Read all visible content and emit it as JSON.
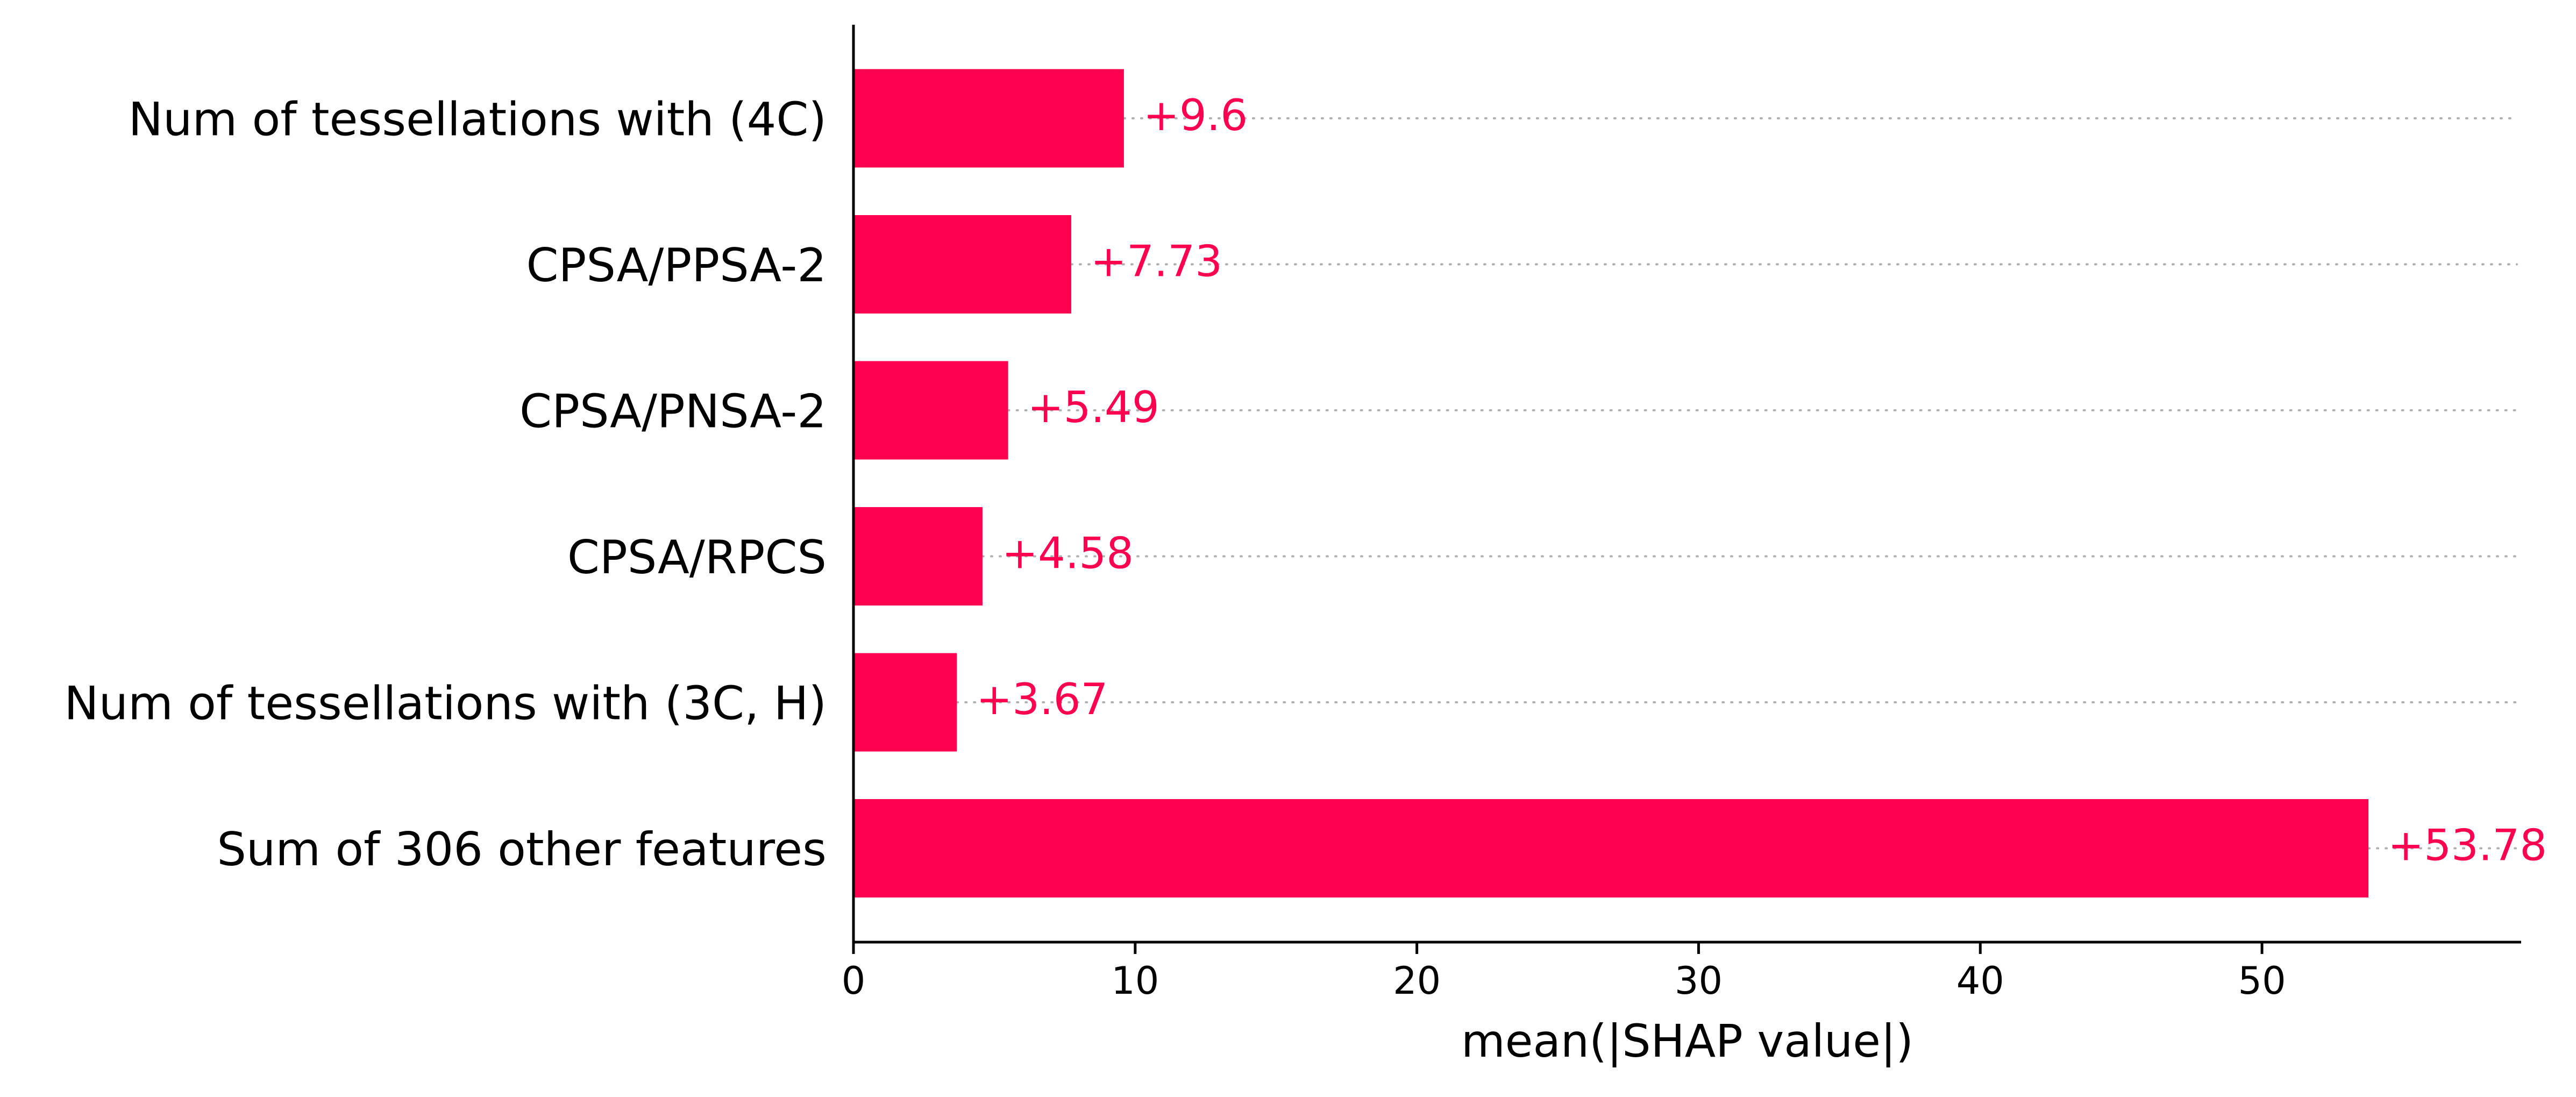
{
  "chart_data": {
    "type": "bar",
    "orientation": "horizontal",
    "categories": [
      "Num of tessellations with (4C)",
      "CPSA/PPSA-2",
      "CPSA/PNSA-2",
      "CPSA/RPCS",
      "Num of tessellations with (3C, H)",
      "Sum of 306 other features"
    ],
    "values": [
      9.6,
      7.73,
      5.49,
      4.58,
      3.67,
      53.78
    ],
    "value_labels": [
      "+9.6",
      "+7.73",
      "+5.49",
      "+4.58",
      "+3.67",
      "+53.78"
    ],
    "xlabel": "mean(|SHAP value|)",
    "xlim": [
      0,
      59.2
    ],
    "xticks": [
      0,
      10,
      20,
      30,
      40,
      50
    ],
    "xtick_labels": [
      "0",
      "10",
      "20",
      "30",
      "40",
      "50"
    ],
    "grid": "dotted guide lines per bar",
    "bar_color": "#ff0051"
  }
}
